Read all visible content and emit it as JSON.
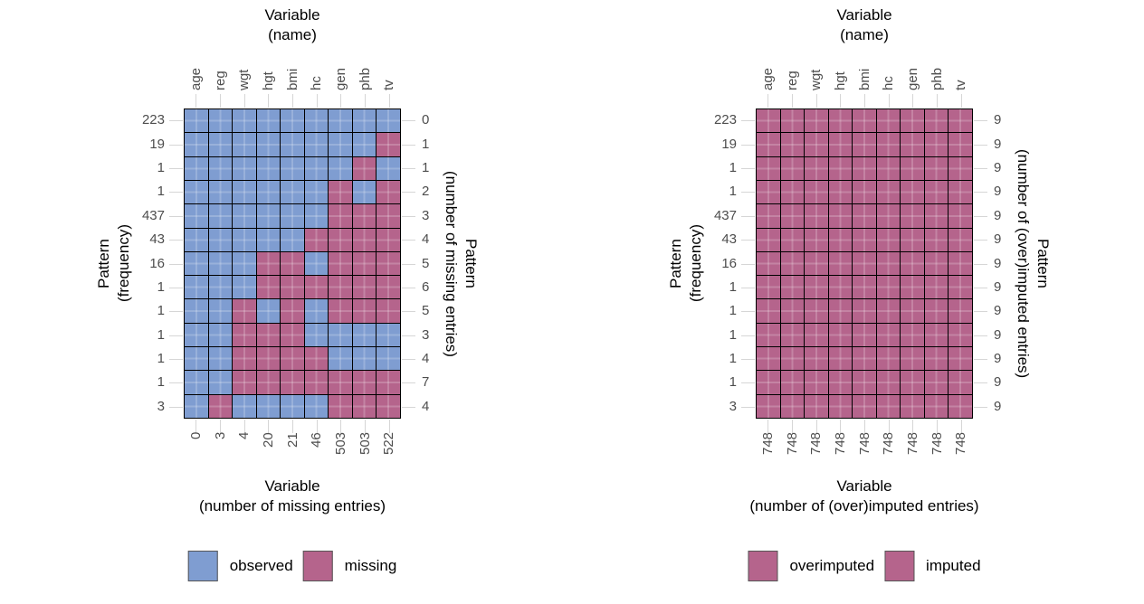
{
  "colors": {
    "observed": "#7F9DD1",
    "missing": "#B5648C",
    "tile_border": "#000000",
    "tick_label_gray": "#4d4d4d",
    "tick_mark_gray": "#d6d6d6",
    "background": "#ffffff"
  },
  "chart_data": [
    {
      "type": "heatmap",
      "title_lines": [
        "Variable",
        "(name)"
      ],
      "ylabel_left_lines": [
        "Pattern",
        "(frequency)"
      ],
      "ylabel_right_lines": [
        "Pattern",
        "(number of missing entries)"
      ],
      "xlabel_lines": [
        "Variable",
        "(number of missing entries)"
      ],
      "columns": [
        "age",
        "reg",
        "wgt",
        "hgt",
        "bmi",
        "hc",
        "gen",
        "phb",
        "tv"
      ],
      "row_frequencies": [
        223,
        19,
        1,
        1,
        437,
        43,
        16,
        1,
        1,
        1,
        1,
        1,
        3
      ],
      "row_counts_right": [
        0,
        1,
        1,
        2,
        3,
        4,
        5,
        6,
        5,
        3,
        4,
        7,
        4
      ],
      "col_counts_bottom": [
        0,
        3,
        4,
        20,
        21,
        46,
        503,
        503,
        522
      ],
      "cell_codes": {
        "O": "observed",
        "M": "missing"
      },
      "cell_colors": {
        "O": "#7F9DD1",
        "M": "#B5648C"
      },
      "cells": [
        "OOOOOOOOO",
        "OOOOOOOOM",
        "OOOOOOOMO",
        "OOOOOOMOM",
        "OOOOOOMMM",
        "OOOOOMMMM",
        "OOOMMOMMM",
        "OOOMMMMMM",
        "OOMOMOMMM",
        "OOMMMOOOO",
        "OOMMMMOOO",
        "OOMMMMMMM",
        "OMOOOOMMM"
      ],
      "legend": [
        {
          "label": "observed",
          "color": "#7F9DD1"
        },
        {
          "label": "missing",
          "color": "#B5648C"
        }
      ]
    },
    {
      "type": "heatmap",
      "title_lines": [
        "Variable",
        "(name)"
      ],
      "ylabel_left_lines": [
        "Pattern",
        "(frequency)"
      ],
      "ylabel_right_lines": [
        "Pattern",
        "(number of (over)imputed entries)"
      ],
      "xlabel_lines": [
        "Variable",
        "(number of (over)imputed entries)"
      ],
      "columns": [
        "age",
        "reg",
        "wgt",
        "hgt",
        "bmi",
        "hc",
        "gen",
        "phb",
        "tv"
      ],
      "row_frequencies": [
        223,
        19,
        1,
        1,
        437,
        43,
        16,
        1,
        1,
        1,
        1,
        1,
        3
      ],
      "row_counts_right": [
        9,
        9,
        9,
        9,
        9,
        9,
        9,
        9,
        9,
        9,
        9,
        9,
        9
      ],
      "col_counts_bottom": [
        748,
        748,
        748,
        748,
        748,
        748,
        748,
        748,
        748
      ],
      "cell_codes": {
        "M": "imputed"
      },
      "cell_colors": {
        "M": "#B5648C"
      },
      "cells": [
        "MMMMMMMMM",
        "MMMMMMMMM",
        "MMMMMMMMM",
        "MMMMMMMMM",
        "MMMMMMMMM",
        "MMMMMMMMM",
        "MMMMMMMMM",
        "MMMMMMMMM",
        "MMMMMMMMM",
        "MMMMMMMMM",
        "MMMMMMMMM",
        "MMMMMMMMM",
        "MMMMMMMMM"
      ],
      "legend": [
        {
          "label": "overimputed",
          "color": "#B5648C"
        },
        {
          "label": "imputed",
          "color": "#B5648C"
        }
      ]
    }
  ]
}
